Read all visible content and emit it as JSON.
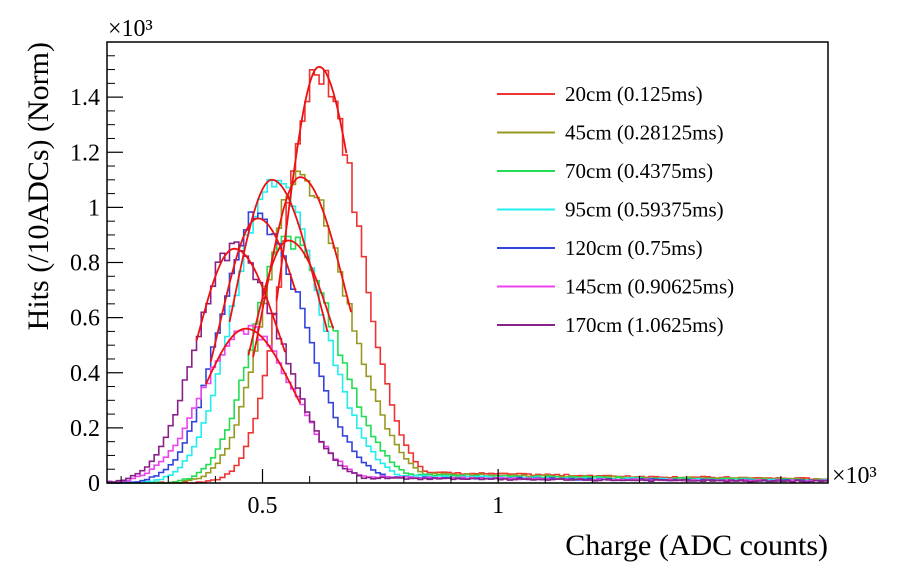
{
  "chart_data": {
    "type": "line",
    "title": "",
    "xlabel": "Charge (ADC counts)",
    "ylabel": "Hits (/10ADCs) (Norm)",
    "x_exponent": "×10³",
    "y_exponent": "×10³",
    "xlim": [
      0.17,
      1.7
    ],
    "ylim": [
      0,
      1.6
    ],
    "x_ticks": [
      {
        "value": 0.5,
        "label": "0.5"
      },
      {
        "value": 1.0,
        "label": "1"
      }
    ],
    "y_ticks": [
      {
        "value": 0,
        "label": "0"
      },
      {
        "value": 0.2,
        "label": "0.2"
      },
      {
        "value": 0.4,
        "label": "0.4"
      },
      {
        "value": 0.6,
        "label": "0.6"
      },
      {
        "value": 0.8,
        "label": "0.8"
      },
      {
        "value": 1.0,
        "label": "1"
      },
      {
        "value": 1.2,
        "label": "1.2"
      },
      {
        "value": 1.4,
        "label": "1.4"
      }
    ],
    "grid": false,
    "legend_position": "top-right",
    "fit_color": "#ee1111",
    "series": [
      {
        "name": "20cm (0.125ms)",
        "color": "#ee3333",
        "peak_x": 0.62,
        "peak_y": 1.51,
        "sigma_left": 0.07,
        "sigma_right": 0.085,
        "tail": 0.05,
        "fit_range": [
          0.53,
          0.68
        ]
      },
      {
        "name": "45cm (0.28125ms)",
        "color": "#999922",
        "peak_x": 0.58,
        "peak_y": 1.11,
        "sigma_left": 0.075,
        "sigma_right": 0.1,
        "tail": 0.045,
        "fit_range": [
          0.48,
          0.69
        ]
      },
      {
        "name": "70cm (0.4375ms)",
        "color": "#22dd55",
        "peak_x": 0.555,
        "peak_y": 0.88,
        "sigma_left": 0.075,
        "sigma_right": 0.1,
        "tail": 0.04,
        "fit_range": [
          0.47,
          0.65
        ]
      },
      {
        "name": "95cm (0.59375ms)",
        "color": "#22eeee",
        "peak_x": 0.52,
        "peak_y": 1.1,
        "sigma_left": 0.08,
        "sigma_right": 0.1,
        "tail": 0.035,
        "fit_range": [
          0.43,
          0.64
        ]
      },
      {
        "name": "120cm (0.75ms)",
        "color": "#3344dd",
        "peak_x": 0.49,
        "peak_y": 0.96,
        "sigma_left": 0.08,
        "sigma_right": 0.1,
        "tail": 0.03,
        "fit_range": [
          0.39,
          0.57
        ]
      },
      {
        "name": "145cm (0.90625ms)",
        "color": "#ee44ee",
        "peak_x": 0.465,
        "peak_y": 0.56,
        "sigma_left": 0.09,
        "sigma_right": 0.1,
        "tail": 0.03,
        "fit_range": [
          0.38,
          0.58
        ]
      },
      {
        "name": "170cm (1.0625ms)",
        "color": "#882288",
        "peak_x": 0.44,
        "peak_y": 0.85,
        "sigma_left": 0.08,
        "sigma_right": 0.1,
        "tail": 0.025,
        "fit_range": [
          0.36,
          0.55
        ]
      }
    ]
  }
}
